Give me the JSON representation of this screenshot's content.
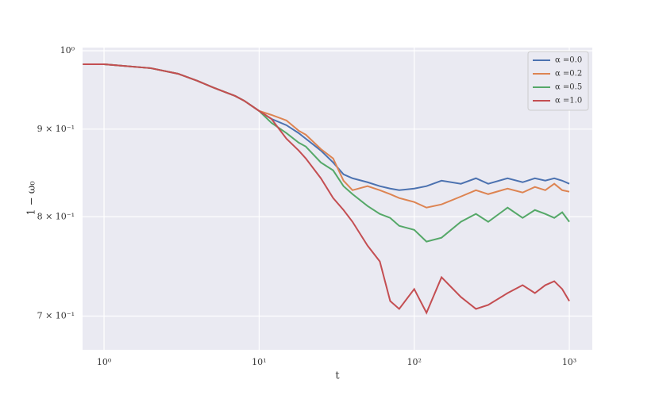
{
  "chart_data": {
    "type": "line",
    "x_label": "t",
    "y_label": "1 − ω₀",
    "xscale": "log",
    "yscale": "log",
    "grid": true,
    "legend": "upper right",
    "xlim": [
      0.727,
      1407
    ],
    "ylim": [
      0.669,
      1.0043
    ],
    "xticks": [
      {
        "value": 1,
        "label": "10⁰"
      },
      {
        "value": 10,
        "label": "10¹"
      },
      {
        "value": 100,
        "label": "10²"
      },
      {
        "value": 1000,
        "label": "10³"
      }
    ],
    "yticks": [
      {
        "value": 0.7,
        "label": "7 × 10⁻¹"
      },
      {
        "value": 0.8,
        "label": "8 × 10⁻¹"
      },
      {
        "value": 0.9,
        "label": "9 × 10⁻¹"
      },
      {
        "value": 1,
        "label": "10⁰"
      }
    ],
    "x": [
      0.73,
      1,
      2,
      3,
      4,
      5,
      6,
      7,
      8,
      10,
      12,
      15,
      18,
      20,
      25,
      30,
      35,
      40,
      50,
      60,
      70,
      80,
      100,
      120,
      150,
      200,
      250,
      300,
      400,
      500,
      600,
      700,
      800,
      900,
      1000
    ],
    "series": [
      {
        "name": "α =0.0",
        "color": "#4c72b0",
        "values": [
          0.9821,
          0.9821,
          0.9769,
          0.9696,
          0.9604,
          0.9522,
          0.9461,
          0.9411,
          0.9351,
          0.9223,
          0.9125,
          0.9048,
          0.8952,
          0.8885,
          0.8745,
          0.8606,
          0.847,
          0.8425,
          0.838,
          0.8336,
          0.8309,
          0.8291,
          0.8309,
          0.8336,
          0.8398,
          0.8363,
          0.8425,
          0.8363,
          0.8425,
          0.838,
          0.8425,
          0.8398,
          0.8425,
          0.8398,
          0.8363
        ]
      },
      {
        "name": "α =0.2",
        "color": "#dd8452",
        "values": [
          0.9821,
          0.9821,
          0.9769,
          0.9696,
          0.9604,
          0.9522,
          0.9461,
          0.9411,
          0.9351,
          0.9223,
          0.9174,
          0.9106,
          0.8981,
          0.8933,
          0.8763,
          0.8652,
          0.8398,
          0.8291,
          0.8336,
          0.8291,
          0.8247,
          0.8204,
          0.816,
          0.8099,
          0.8134,
          0.8221,
          0.8291,
          0.8247,
          0.8309,
          0.8265,
          0.8327,
          0.8291,
          0.8363,
          0.8291,
          0.8274
        ]
      },
      {
        "name": "α =0.5",
        "color": "#55a868",
        "values": [
          0.9821,
          0.9821,
          0.9769,
          0.9696,
          0.9604,
          0.9522,
          0.9461,
          0.9411,
          0.9351,
          0.9223,
          0.9077,
          0.8952,
          0.8838,
          0.8792,
          0.8606,
          0.8515,
          0.8336,
          0.8247,
          0.8117,
          0.8031,
          0.7988,
          0.7903,
          0.7861,
          0.7737,
          0.7778,
          0.7946,
          0.8031,
          0.7946,
          0.8099,
          0.7988,
          0.8073,
          0.8031,
          0.7988,
          0.8048,
          0.7946
        ]
      },
      {
        "name": "α =1.0",
        "color": "#c44e52",
        "values": [
          0.9821,
          0.9821,
          0.9769,
          0.9696,
          0.9604,
          0.9522,
          0.9461,
          0.9411,
          0.9351,
          0.9223,
          0.9125,
          0.8885,
          0.8745,
          0.8652,
          0.8425,
          0.8204,
          0.8073,
          0.7946,
          0.7696,
          0.7534,
          0.7143,
          0.7068,
          0.7259,
          0.7031,
          0.7375,
          0.7182,
          0.7068,
          0.7106,
          0.722,
          0.7297,
          0.722,
          0.7297,
          0.7336,
          0.7259,
          0.7143
        ]
      }
    ]
  }
}
